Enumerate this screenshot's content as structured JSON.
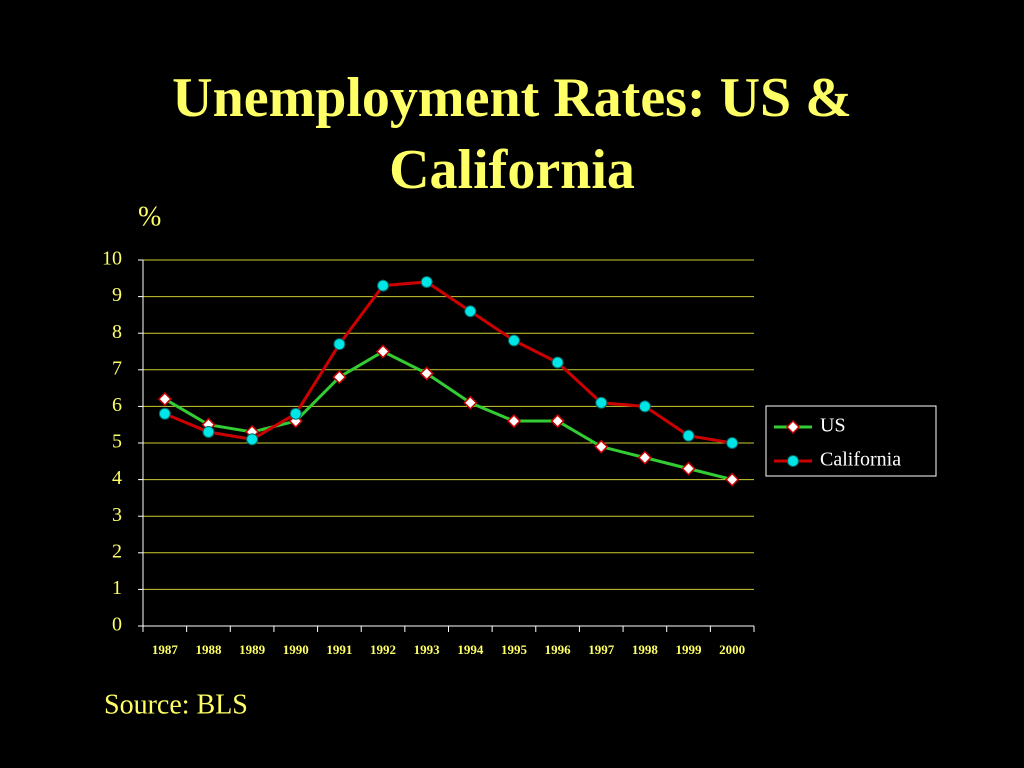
{
  "chart_data": {
    "type": "line",
    "title": "Unemployment Rates: US & California",
    "y_label": "%",
    "source": "Source: BLS",
    "categories": [
      "1987",
      "1988",
      "1989",
      "1990",
      "1991",
      "1992",
      "1993",
      "1994",
      "1995",
      "1996",
      "1997",
      "1998",
      "1999",
      "2000"
    ],
    "series": [
      {
        "name": "US",
        "color": "#33cc33",
        "marker": "diamond",
        "values": [
          6.2,
          5.5,
          5.3,
          5.6,
          6.8,
          7.5,
          6.9,
          6.1,
          5.6,
          5.6,
          4.9,
          4.6,
          4.3,
          4.0
        ]
      },
      {
        "name": "California",
        "color": "#cc0000",
        "marker": "circle",
        "values": [
          5.8,
          5.3,
          5.1,
          5.8,
          7.7,
          9.3,
          9.4,
          8.6,
          7.8,
          7.2,
          6.1,
          6.0,
          5.2,
          5.0
        ]
      }
    ],
    "ylim": [
      0,
      10
    ],
    "yticks": [
      0,
      1,
      2,
      3,
      4,
      5,
      6,
      7,
      8,
      9,
      10
    ],
    "grid": true,
    "legend": "right"
  }
}
